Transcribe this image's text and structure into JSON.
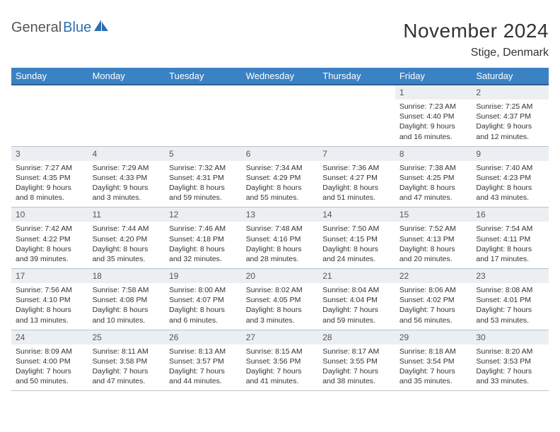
{
  "logo": {
    "text1": "General",
    "text2": "Blue"
  },
  "title": "November 2024",
  "location": "Stige, Denmark",
  "colors": {
    "header_bg": "#3b82c4",
    "header_border": "#2b5f8f",
    "daynum_bg": "#eceff2",
    "cell_border": "#b8c4d0",
    "logo_accent": "#2f6fb0",
    "text": "#333333"
  },
  "weekdays": [
    "Sunday",
    "Monday",
    "Tuesday",
    "Wednesday",
    "Thursday",
    "Friday",
    "Saturday"
  ],
  "weeks": [
    {
      "nums": [
        "",
        "",
        "",
        "",
        "",
        "1",
        "2"
      ],
      "cells": [
        null,
        null,
        null,
        null,
        null,
        {
          "sunrise": "Sunrise: 7:23 AM",
          "sunset": "Sunset: 4:40 PM",
          "day1": "Daylight: 9 hours",
          "day2": "and 16 minutes."
        },
        {
          "sunrise": "Sunrise: 7:25 AM",
          "sunset": "Sunset: 4:37 PM",
          "day1": "Daylight: 9 hours",
          "day2": "and 12 minutes."
        }
      ]
    },
    {
      "nums": [
        "3",
        "4",
        "5",
        "6",
        "7",
        "8",
        "9"
      ],
      "cells": [
        {
          "sunrise": "Sunrise: 7:27 AM",
          "sunset": "Sunset: 4:35 PM",
          "day1": "Daylight: 9 hours",
          "day2": "and 8 minutes."
        },
        {
          "sunrise": "Sunrise: 7:29 AM",
          "sunset": "Sunset: 4:33 PM",
          "day1": "Daylight: 9 hours",
          "day2": "and 3 minutes."
        },
        {
          "sunrise": "Sunrise: 7:32 AM",
          "sunset": "Sunset: 4:31 PM",
          "day1": "Daylight: 8 hours",
          "day2": "and 59 minutes."
        },
        {
          "sunrise": "Sunrise: 7:34 AM",
          "sunset": "Sunset: 4:29 PM",
          "day1": "Daylight: 8 hours",
          "day2": "and 55 minutes."
        },
        {
          "sunrise": "Sunrise: 7:36 AM",
          "sunset": "Sunset: 4:27 PM",
          "day1": "Daylight: 8 hours",
          "day2": "and 51 minutes."
        },
        {
          "sunrise": "Sunrise: 7:38 AM",
          "sunset": "Sunset: 4:25 PM",
          "day1": "Daylight: 8 hours",
          "day2": "and 47 minutes."
        },
        {
          "sunrise": "Sunrise: 7:40 AM",
          "sunset": "Sunset: 4:23 PM",
          "day1": "Daylight: 8 hours",
          "day2": "and 43 minutes."
        }
      ]
    },
    {
      "nums": [
        "10",
        "11",
        "12",
        "13",
        "14",
        "15",
        "16"
      ],
      "cells": [
        {
          "sunrise": "Sunrise: 7:42 AM",
          "sunset": "Sunset: 4:22 PM",
          "day1": "Daylight: 8 hours",
          "day2": "and 39 minutes."
        },
        {
          "sunrise": "Sunrise: 7:44 AM",
          "sunset": "Sunset: 4:20 PM",
          "day1": "Daylight: 8 hours",
          "day2": "and 35 minutes."
        },
        {
          "sunrise": "Sunrise: 7:46 AM",
          "sunset": "Sunset: 4:18 PM",
          "day1": "Daylight: 8 hours",
          "day2": "and 32 minutes."
        },
        {
          "sunrise": "Sunrise: 7:48 AM",
          "sunset": "Sunset: 4:16 PM",
          "day1": "Daylight: 8 hours",
          "day2": "and 28 minutes."
        },
        {
          "sunrise": "Sunrise: 7:50 AM",
          "sunset": "Sunset: 4:15 PM",
          "day1": "Daylight: 8 hours",
          "day2": "and 24 minutes."
        },
        {
          "sunrise": "Sunrise: 7:52 AM",
          "sunset": "Sunset: 4:13 PM",
          "day1": "Daylight: 8 hours",
          "day2": "and 20 minutes."
        },
        {
          "sunrise": "Sunrise: 7:54 AM",
          "sunset": "Sunset: 4:11 PM",
          "day1": "Daylight: 8 hours",
          "day2": "and 17 minutes."
        }
      ]
    },
    {
      "nums": [
        "17",
        "18",
        "19",
        "20",
        "21",
        "22",
        "23"
      ],
      "cells": [
        {
          "sunrise": "Sunrise: 7:56 AM",
          "sunset": "Sunset: 4:10 PM",
          "day1": "Daylight: 8 hours",
          "day2": "and 13 minutes."
        },
        {
          "sunrise": "Sunrise: 7:58 AM",
          "sunset": "Sunset: 4:08 PM",
          "day1": "Daylight: 8 hours",
          "day2": "and 10 minutes."
        },
        {
          "sunrise": "Sunrise: 8:00 AM",
          "sunset": "Sunset: 4:07 PM",
          "day1": "Daylight: 8 hours",
          "day2": "and 6 minutes."
        },
        {
          "sunrise": "Sunrise: 8:02 AM",
          "sunset": "Sunset: 4:05 PM",
          "day1": "Daylight: 8 hours",
          "day2": "and 3 minutes."
        },
        {
          "sunrise": "Sunrise: 8:04 AM",
          "sunset": "Sunset: 4:04 PM",
          "day1": "Daylight: 7 hours",
          "day2": "and 59 minutes."
        },
        {
          "sunrise": "Sunrise: 8:06 AM",
          "sunset": "Sunset: 4:02 PM",
          "day1": "Daylight: 7 hours",
          "day2": "and 56 minutes."
        },
        {
          "sunrise": "Sunrise: 8:08 AM",
          "sunset": "Sunset: 4:01 PM",
          "day1": "Daylight: 7 hours",
          "day2": "and 53 minutes."
        }
      ]
    },
    {
      "nums": [
        "24",
        "25",
        "26",
        "27",
        "28",
        "29",
        "30"
      ],
      "cells": [
        {
          "sunrise": "Sunrise: 8:09 AM",
          "sunset": "Sunset: 4:00 PM",
          "day1": "Daylight: 7 hours",
          "day2": "and 50 minutes."
        },
        {
          "sunrise": "Sunrise: 8:11 AM",
          "sunset": "Sunset: 3:58 PM",
          "day1": "Daylight: 7 hours",
          "day2": "and 47 minutes."
        },
        {
          "sunrise": "Sunrise: 8:13 AM",
          "sunset": "Sunset: 3:57 PM",
          "day1": "Daylight: 7 hours",
          "day2": "and 44 minutes."
        },
        {
          "sunrise": "Sunrise: 8:15 AM",
          "sunset": "Sunset: 3:56 PM",
          "day1": "Daylight: 7 hours",
          "day2": "and 41 minutes."
        },
        {
          "sunrise": "Sunrise: 8:17 AM",
          "sunset": "Sunset: 3:55 PM",
          "day1": "Daylight: 7 hours",
          "day2": "and 38 minutes."
        },
        {
          "sunrise": "Sunrise: 8:18 AM",
          "sunset": "Sunset: 3:54 PM",
          "day1": "Daylight: 7 hours",
          "day2": "and 35 minutes."
        },
        {
          "sunrise": "Sunrise: 8:20 AM",
          "sunset": "Sunset: 3:53 PM",
          "day1": "Daylight: 7 hours",
          "day2": "and 33 minutes."
        }
      ]
    }
  ]
}
